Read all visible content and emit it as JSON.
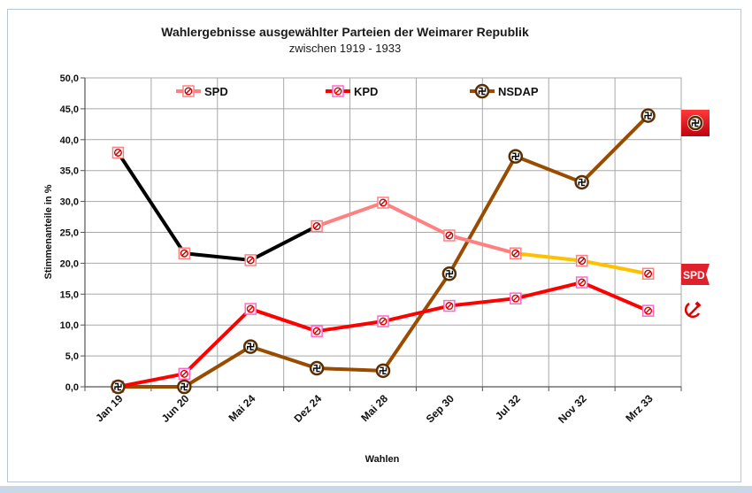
{
  "chart_data": {
    "type": "line",
    "title": "Wahlergebnisse ausgewählter Parteien der Weimarer Republik",
    "subtitle": "zwischen 1919 - 1933",
    "xlabel": "Wahlen",
    "ylabel": "Stimmenanteile in %",
    "ylim": [
      0,
      50
    ],
    "yticks": [
      "0,0",
      "5,0",
      "10,0",
      "15,0",
      "20,0",
      "25,0",
      "30,0",
      "35,0",
      "40,0",
      "45,0",
      "50,0"
    ],
    "categories": [
      "Jan 19",
      "Jun 20",
      "Mai 24",
      "Dez 24",
      "Mai 28",
      "Sep 30",
      "Jul 32",
      "Nov 32",
      "Mrz 33"
    ],
    "grid": true,
    "legend_position": "top",
    "series": [
      {
        "name": "SPD",
        "values": [
          37.9,
          21.6,
          20.5,
          26.0,
          29.8,
          24.5,
          21.6,
          20.4,
          18.3
        ],
        "color": "#ff8080",
        "segment_colors": [
          "#000000",
          "#000000",
          "#000000",
          "#ff8080",
          "#ff8080",
          "#ff8080",
          "#ffc000",
          "#ffc000"
        ]
      },
      {
        "name": "KPD",
        "values": [
          0.0,
          2.1,
          12.6,
          9.0,
          10.6,
          13.1,
          14.3,
          16.9,
          12.3
        ],
        "color": "#ff0000"
      },
      {
        "name": "NSDAP",
        "values": [
          0.0,
          0.0,
          6.5,
          3.0,
          2.6,
          18.3,
          37.3,
          33.1,
          43.9
        ],
        "color": "#994c00"
      }
    ],
    "side_badges": [
      {
        "label": "SPD",
        "color": "#e0202a"
      }
    ]
  }
}
